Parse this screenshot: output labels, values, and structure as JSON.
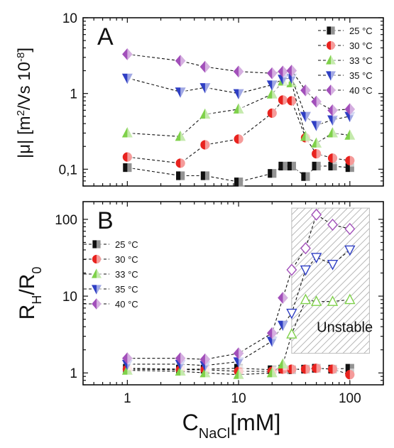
{
  "chart_data": [
    {
      "type": "scatter",
      "panel_label": "A",
      "ylabel": "|μ| [m²/Vs 10⁻⁸]",
      "xlabel": "",
      "xscale": "log",
      "yscale": "log",
      "xlim": [
        0.4,
        200
      ],
      "ylim": [
        0.06,
        10
      ],
      "yticks": [
        {
          "value": 0.1,
          "label": "0,1"
        },
        {
          "value": 1,
          "label": "1"
        },
        {
          "value": 10,
          "label": "10"
        }
      ],
      "xticks": [
        {
          "value": 1,
          "label": ""
        },
        {
          "value": 10,
          "label": ""
        },
        {
          "value": 100,
          "label": ""
        }
      ],
      "legend_position": "top-right",
      "series": [
        {
          "name": "25 °C",
          "marker": "square",
          "color": "#111111",
          "x": [
            1,
            3,
            5,
            10,
            20,
            25,
            30,
            40,
            50,
            70,
            100
          ],
          "y": [
            0.105,
            0.082,
            0.082,
            0.068,
            0.088,
            0.11,
            0.11,
            0.08,
            0.11,
            0.11,
            0.105
          ]
        },
        {
          "name": "30 °C",
          "marker": "circle",
          "color": "#e8231f",
          "x": [
            1,
            3,
            5,
            10,
            20,
            25,
            30,
            40,
            50,
            70,
            100
          ],
          "y": [
            0.145,
            0.12,
            0.21,
            0.25,
            0.55,
            0.82,
            0.8,
            0.26,
            0.16,
            0.14,
            0.13
          ]
        },
        {
          "name": "33 °C",
          "marker": "triangle-up",
          "color": "#7fd14a",
          "x": [
            1,
            3,
            5,
            10,
            20,
            25,
            30,
            40,
            50,
            70,
            100
          ],
          "y": [
            0.3,
            0.27,
            0.53,
            0.62,
            0.98,
            1.45,
            1.38,
            0.27,
            0.22,
            0.3,
            0.28
          ]
        },
        {
          "name": "35 °C",
          "marker": "triangle-down",
          "color": "#2f3fc4",
          "x": [
            1,
            3,
            5,
            10,
            20,
            25,
            30,
            40,
            50,
            70,
            100
          ],
          "y": [
            1.6,
            1.05,
            1.2,
            1.0,
            1.3,
            1.55,
            1.6,
            0.5,
            0.38,
            0.45,
            0.5
          ]
        },
        {
          "name": "40 °C",
          "marker": "diamond",
          "color": "#a24fba",
          "x": [
            1,
            3,
            5,
            10,
            20,
            25,
            30,
            40,
            50,
            70,
            100
          ],
          "y": [
            3.3,
            2.7,
            2.25,
            1.95,
            1.85,
            1.95,
            2.0,
            1.1,
            0.78,
            0.6,
            0.62
          ]
        }
      ]
    },
    {
      "type": "scatter",
      "panel_label": "B",
      "ylabel": "R_H/R_0",
      "xlabel": "C_NaCl[mM]",
      "xscale": "log",
      "yscale": "log",
      "xlim": [
        0.4,
        200
      ],
      "ylim": [
        0.7,
        170
      ],
      "yticks": [
        {
          "value": 1,
          "label": "1"
        },
        {
          "value": 10,
          "label": "10"
        },
        {
          "value": 100,
          "label": "100"
        }
      ],
      "xticks": [
        {
          "value": 1,
          "label": "1"
        },
        {
          "value": 10,
          "label": "10"
        },
        {
          "value": 100,
          "label": "100"
        }
      ],
      "legend_position": "center-left",
      "annotation": {
        "text": "Unstable",
        "x_range": [
          30,
          150
        ],
        "y_range": [
          1.8,
          140
        ]
      },
      "series": [
        {
          "name": "25 °C",
          "marker": "square",
          "color": "#111111",
          "x": [
            1,
            3,
            5,
            10,
            20,
            25,
            30,
            40,
            50,
            70,
            100
          ],
          "y": [
            1.15,
            1.12,
            1.12,
            1.15,
            1.1,
            1.12,
            1.1,
            1.12,
            1.15,
            1.12,
            1.15
          ]
        },
        {
          "name": "30 °C",
          "marker": "circle",
          "color": "#e8231f",
          "x": [
            1,
            3,
            5,
            10,
            20,
            25,
            30,
            40,
            50,
            70,
            100
          ],
          "y": [
            1.12,
            1.1,
            1.1,
            1.05,
            1.05,
            1.12,
            1.12,
            1.12,
            1.15,
            1.12,
            0.95
          ]
        },
        {
          "name": "33 °C",
          "marker": "triangle-up",
          "color": "#7fd14a",
          "x": [
            1,
            3,
            5,
            10,
            20,
            25,
            30,
            40,
            50,
            70,
            100
          ],
          "y": [
            1.08,
            1.05,
            1.0,
            0.95,
            1.0,
            1.3,
            3.2,
            9.0,
            8.5,
            8.5,
            9.0
          ]
        },
        {
          "name": "35 °C",
          "marker": "triangle-down",
          "color": "#2f3fc4",
          "x": [
            1,
            3,
            5,
            10,
            20,
            25,
            30,
            40,
            50,
            70,
            100
          ],
          "y": [
            1.3,
            1.3,
            1.25,
            1.4,
            2.6,
            4.2,
            6.0,
            22,
            32,
            26,
            40
          ]
        },
        {
          "name": "40 °C",
          "marker": "diamond",
          "color": "#a24fba",
          "x": [
            1,
            3,
            5,
            10,
            20,
            25,
            30,
            40,
            50,
            70,
            100
          ],
          "y": [
            1.55,
            1.55,
            1.5,
            1.8,
            3.3,
            9.5,
            22,
            42,
            115,
            85,
            75
          ]
        }
      ]
    }
  ]
}
